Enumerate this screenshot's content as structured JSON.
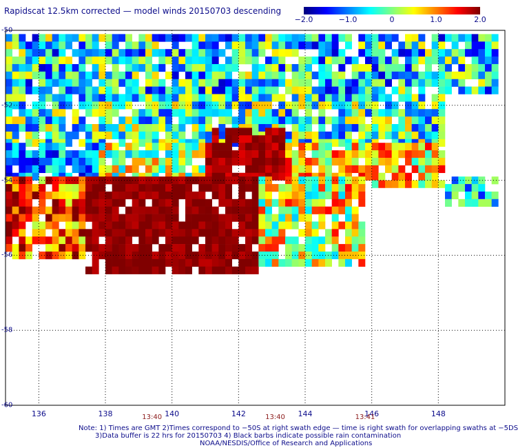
{
  "title": "Rapidscat 12.5km corrected — model winds 20150703 descending",
  "colorbar": {
    "ticks": [
      "−2.0",
      "−1.0",
      "0",
      "1.0",
      "2.0"
    ],
    "tick_values": [
      -2.0,
      -1.0,
      0,
      1.0,
      2.0
    ],
    "range": [
      -2.0,
      2.0
    ]
  },
  "notes": {
    "line1": "Note: 1) Times are GMT 2)Times correspond to −50S at right swath edge — time is right swath for overlapping swaths at −5DS",
    "line2": "3)Data buffer is 22 hrs for 20150703 4) Black barbs indicate possible rain contamination",
    "line3": "NOAA/NESDIS/Office of Research and Applications"
  },
  "time_labels": [
    {
      "text": "13:40",
      "lon": 139.4
    },
    {
      "text": "13:40",
      "lon": 143.1
    },
    {
      "text": "13:41",
      "lon": 145.8
    }
  ],
  "chart_data": {
    "type": "heatmap",
    "title": "Rapidscat 12.5km corrected — model winds 20150703 descending",
    "xlabel": "",
    "ylabel": "",
    "xlim": [
      135.0,
      150.0
    ],
    "ylim": [
      -60,
      -50
    ],
    "x_ticks": [
      136,
      138,
      140,
      142,
      144,
      146,
      148
    ],
    "x_tick_labels": [
      "136",
      "138",
      "140",
      "142",
      "144",
      "146",
      "148"
    ],
    "y_ticks": [
      -50,
      -52,
      -54,
      -56,
      -58,
      -60
    ],
    "y_tick_labels": [
      "-50",
      "-52",
      "-54",
      "-56",
      "-58",
      "-60"
    ],
    "grid": true,
    "color_range": [
      -2.0,
      2.0
    ],
    "cell_size_deg": 0.2,
    "regions": [
      {
        "lon": [
          135.0,
          149.8
        ],
        "lat": [
          -50.1,
          -51.7
        ],
        "value": -0.5,
        "spread": 1.2
      },
      {
        "lon": [
          135.0,
          148.2
        ],
        "lat": [
          -51.7,
          -53.0
        ],
        "value": -0.3,
        "spread": 1.1
      },
      {
        "lon": [
          135.0,
          137.8
        ],
        "lat": [
          -53.0,
          -53.9
        ],
        "value": -0.9,
        "spread": 0.8
      },
      {
        "lon": [
          137.8,
          141.0
        ],
        "lat": [
          -53.0,
          -53.9
        ],
        "value": 0.2,
        "spread": 1.0
      },
      {
        "lon": [
          141.0,
          143.4
        ],
        "lat": [
          -52.6,
          -53.9
        ],
        "value": 1.9,
        "spread": 0.3
      },
      {
        "lon": [
          143.4,
          148.2
        ],
        "lat": [
          -53.0,
          -54.2
        ],
        "value": 0.6,
        "spread": 1.0
      },
      {
        "lon": [
          148.2,
          149.8
        ],
        "lat": [
          -53.9,
          -54.6
        ],
        "value": -0.6,
        "spread": 0.8
      },
      {
        "lon": [
          135.0,
          137.4
        ],
        "lat": [
          -53.9,
          -56.1
        ],
        "value": 1.2,
        "spread": 1.0
      },
      {
        "lon": [
          137.4,
          142.6
        ],
        "lat": [
          -53.9,
          -56.4
        ],
        "value": 1.95,
        "spread": 0.2
      },
      {
        "lon": [
          142.6,
          145.8
        ],
        "lat": [
          -53.9,
          -56.2
        ],
        "value": 0.4,
        "spread": 1.1
      }
    ]
  }
}
